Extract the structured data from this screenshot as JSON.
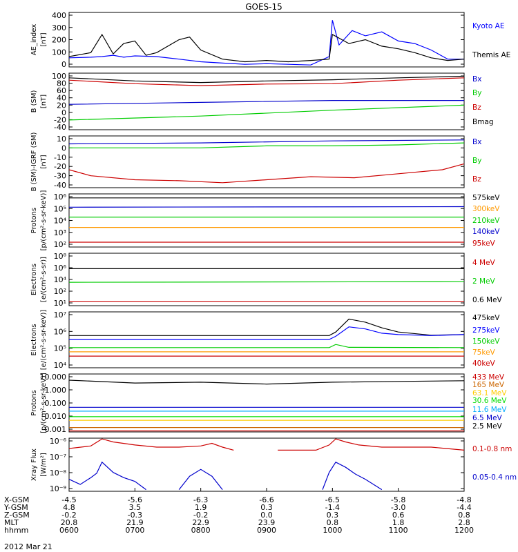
{
  "title": "GOES-15",
  "date_label": "2012 Mar 21",
  "chart_data": [
    {
      "type": "line",
      "ylabel": [
        "AE_index",
        "[nT]"
      ],
      "yticks": [
        "400",
        "300",
        "200",
        "100",
        "0"
      ],
      "ylim": [
        0,
        420
      ],
      "series": [
        {
          "name": "Kyoto AE",
          "color": "#0000ff",
          "x": [
            6.0,
            6.33,
            6.5,
            6.67,
            6.83,
            7.0,
            7.33,
            7.67,
            8.0,
            8.33,
            8.67,
            9.0,
            9.33,
            9.67,
            9.95,
            10.0,
            10.1,
            10.3,
            10.5,
            10.75,
            11.0,
            11.25,
            11.5,
            11.75,
            12.0
          ],
          "y": [
            70,
            75,
            80,
            90,
            75,
            85,
            80,
            60,
            40,
            30,
            20,
            25,
            20,
            15,
            80,
            360,
            170,
            280,
            240,
            270,
            200,
            180,
            130,
            60,
            60
          ]
        },
        {
          "name": "Themis AE",
          "color": "#000000",
          "x": [
            6.0,
            6.33,
            6.5,
            6.67,
            6.83,
            7.0,
            7.17,
            7.33,
            7.67,
            7.83,
            8.0,
            8.33,
            8.67,
            9.0,
            9.33,
            9.67,
            9.95,
            10.0,
            10.25,
            10.5,
            10.75,
            11.0,
            11.25,
            11.5,
            11.75,
            12.0
          ],
          "y": [
            80,
            110,
            250,
            100,
            180,
            200,
            90,
            110,
            210,
            230,
            130,
            60,
            40,
            50,
            40,
            50,
            60,
            250,
            180,
            210,
            160,
            140,
            110,
            70,
            50,
            60
          ]
        }
      ]
    },
    {
      "type": "line",
      "ylabel": [
        "B (SM)",
        "[nT]"
      ],
      "yticks": [
        "100",
        "80",
        "60",
        "40",
        "20",
        "0",
        "-20",
        "-40"
      ],
      "ylim": [
        -45,
        100
      ],
      "series": [
        {
          "name": "Bx",
          "color": "#0000cc",
          "x": [
            6,
            8,
            10,
            12
          ],
          "y": [
            20,
            25,
            30,
            30
          ]
        },
        {
          "name": "By",
          "color": "#00cc00",
          "x": [
            6,
            8,
            10,
            12
          ],
          "y": [
            -20,
            -10,
            5,
            18
          ]
        },
        {
          "name": "Bz",
          "color": "#cc0000",
          "x": [
            6,
            7,
            8,
            9,
            10,
            11,
            12
          ],
          "y": [
            82,
            73,
            68,
            72,
            73,
            82,
            88
          ]
        },
        {
          "name": "Bmag",
          "color": "#000000",
          "x": [
            6,
            7,
            8,
            9,
            10,
            11,
            12
          ],
          "y": [
            88,
            80,
            76,
            80,
            83,
            88,
            92
          ]
        }
      ]
    },
    {
      "type": "line",
      "ylabel": [
        "B (SM)-IGRF (SM)",
        "[nT]"
      ],
      "yticks": [
        "10",
        "0",
        "-10",
        "-20",
        "-30",
        "-40"
      ],
      "ylim": [
        -40,
        12
      ],
      "series": [
        {
          "name": "Bx",
          "color": "#0000cc",
          "x": [
            6,
            8,
            10,
            12
          ],
          "y": [
            4,
            5,
            7,
            8
          ]
        },
        {
          "name": "By",
          "color": "#00cc00",
          "x": [
            6,
            7,
            8,
            9,
            10,
            11,
            12
          ],
          "y": [
            0,
            0,
            0,
            2,
            2,
            3,
            5
          ]
        },
        {
          "name": "Bz",
          "color": "#cc0000",
          "x": [
            6,
            6.33,
            7,
            7.67,
            8.33,
            9,
            9.67,
            10.33,
            11,
            11.67,
            12
          ],
          "y": [
            -22,
            -28,
            -32,
            -33,
            -35,
            -32,
            -29,
            -30,
            -26,
            -22,
            -16
          ]
        }
      ]
    },
    {
      "type": "line",
      "log_scale": true,
      "ylabel": [
        "Protons",
        "[p/(cm²-s-sr-keV)]"
      ],
      "yticks": [
        "10⁶",
        "10⁵",
        "10⁴",
        "10³",
        "10²"
      ],
      "ylim": [
        100,
        1000000
      ],
      "series": [
        {
          "name": "575keV",
          "color": "#000000",
          "x": [
            6,
            12
          ],
          "y": [
            500000,
            500000
          ]
        },
        {
          "name": "300keV",
          "color": "#ff9900",
          "x": [
            6,
            12
          ],
          "y": [
            3000,
            3000
          ]
        },
        {
          "name": "210keV",
          "color": "#00cc00",
          "x": [
            6,
            12
          ],
          "y": [
            18000,
            18000
          ]
        },
        {
          "name": "140keV",
          "color": "#0000cc",
          "x": [
            6,
            12
          ],
          "y": [
            100000,
            110000
          ]
        },
        {
          "name": "95keV",
          "color": "#cc0000",
          "x": [
            6,
            12
          ],
          "y": [
            230,
            230
          ]
        }
      ]
    },
    {
      "type": "line",
      "log_scale": true,
      "ylabel": [
        "Electrons",
        "[e/(cm²-s-sr)]"
      ],
      "yticks": [
        "10⁸",
        "10⁶",
        "10⁴",
        "10²",
        "10¹"
      ],
      "ylim": [
        5,
        100000000
      ],
      "series": [
        {
          "name": "4 MeV",
          "color": "#cc0000",
          "x": [
            6,
            12
          ],
          "y": [
            20,
            20
          ]
        },
        {
          "name": "2 MeV",
          "color": "#00cc00",
          "x": [
            6,
            12
          ],
          "y": [
            9000,
            11000
          ]
        },
        {
          "name": "0.6 MeV",
          "color": "#000000",
          "x": [
            6,
            12
          ],
          "y": [
            700000,
            700000
          ]
        }
      ]
    },
    {
      "type": "line",
      "log_scale": true,
      "ylabel": [
        "Electrons",
        "[e/(cm²-s-sr-keV)]"
      ],
      "yticks": [
        "10⁷",
        "10⁶",
        "10⁵",
        "10⁴"
      ],
      "ylim": [
        9000,
        80000000
      ],
      "series": [
        {
          "name": "475keV",
          "color": "#000000",
          "x": [
            6,
            9.95,
            10.05,
            10.25,
            10.5,
            10.75,
            11,
            11.5,
            12
          ],
          "y": [
            1700000,
            1700000,
            3000000,
            25000000,
            15000000,
            6000000,
            3000000,
            1800000,
            2000000
          ]
        },
        {
          "name": "275keV",
          "color": "#0000ff",
          "x": [
            6,
            9.95,
            10.05,
            10.25,
            10.5,
            10.75,
            11,
            11.5,
            12
          ],
          "y": [
            900000,
            900000,
            1500000,
            7000000,
            5000000,
            2500000,
            2000000,
            1700000,
            2000000
          ]
        },
        {
          "name": "150keV",
          "color": "#00cc00",
          "x": [
            6,
            9.95,
            10.05,
            10.25,
            12
          ],
          "y": [
            240000,
            240000,
            400000,
            250000,
            240000
          ]
        },
        {
          "name": "75keV",
          "color": "#ff9900",
          "x": [
            6,
            12
          ],
          "y": [
            120000,
            120000
          ]
        },
        {
          "name": "40keV",
          "color": "#cc0000",
          "x": [
            6,
            12
          ],
          "y": [
            60000,
            60000
          ]
        }
      ]
    },
    {
      "type": "line",
      "log_scale": true,
      "ylabel": [
        "Protons",
        "[p/(cm²-s-sr-keV)]"
      ],
      "yticks": [
        "10.000",
        "1.000",
        "0.100",
        "0.010",
        "0.001"
      ],
      "ylim": [
        0.001,
        30
      ],
      "series": [
        {
          "name": "433 MeV",
          "color": "#cc0000",
          "x": [
            6,
            12
          ],
          "y": [
            0.0012,
            0.0012
          ]
        },
        {
          "name": "165 MeV",
          "color": "#cc6600",
          "x": [
            6,
            12
          ],
          "y": [
            0.0022,
            0.0022
          ]
        },
        {
          "name": "63.1 MeV",
          "color": "#ffcc00",
          "x": [
            6,
            12
          ],
          "y": [
            0.008,
            0.008
          ]
        },
        {
          "name": "30.6 MeV",
          "color": "#00dd00",
          "x": [
            6,
            12
          ],
          "y": [
            0.015,
            0.015
          ]
        },
        {
          "name": "11.6 MeV",
          "color": "#00aaff",
          "x": [
            6,
            12
          ],
          "y": [
            0.04,
            0.04
          ]
        },
        {
          "name": "6.5 MeV",
          "color": "#0000cc",
          "x": [
            6,
            12
          ],
          "y": [
            0.08,
            0.08
          ]
        },
        {
          "name": "2.5 MeV",
          "color": "#000000",
          "x": [
            6,
            7,
            8,
            9,
            10,
            11,
            12
          ],
          "y": [
            10,
            6,
            7,
            5,
            7,
            8,
            9
          ]
        }
      ]
    },
    {
      "type": "line",
      "log_scale": true,
      "ylabel": [
        "Xray Flux",
        "[W/m²]"
      ],
      "yticks": [
        "10⁻⁶",
        "10⁻⁷",
        "10⁻⁸",
        "10⁻⁹"
      ],
      "ylim": [
        8e-10,
        1e-06
      ],
      "series": [
        {
          "name": "0.1-0.8 nm",
          "color": "#cc0000",
          "segments": [
            {
              "x": [
                6.0,
                6.33,
                6.5,
                6.67,
                7.0,
                7.33,
                7.67,
                8.0,
                8.17,
                8.33,
                8.5
              ],
              "y": [
                2.5e-07,
                3.5e-07,
                9e-07,
                6e-07,
                4e-07,
                3e-07,
                3e-07,
                3.5e-07,
                5e-07,
                3e-07,
                2e-07
              ]
            },
            {
              "x": [
                9.17,
                9.5,
                9.75,
                9.95,
                10.05,
                10.2,
                10.4,
                10.75,
                11,
                11.5,
                12
              ],
              "y": [
                2e-07,
                2e-07,
                2e-07,
                4e-07,
                9e-07,
                6e-07,
                4e-07,
                3e-07,
                3e-07,
                3e-07,
                2e-07
              ]
            }
          ]
        },
        {
          "name": "0.05-0.4 nm",
          "color": "#0000cc",
          "segments": [
            {
              "x": [
                6.0,
                6.17,
                6.33,
                6.42,
                6.5,
                6.67,
                6.83,
                7.0,
                7.17
              ],
              "y": [
                4e-09,
                2e-09,
                5e-09,
                9e-09,
                4e-08,
                1e-08,
                5e-09,
                3e-09,
                1e-09
              ]
            },
            {
              "x": [
                7.67,
                7.83,
                8.0,
                8.17,
                8.33
              ],
              "y": [
                1e-09,
                6e-09,
                1.5e-08,
                6e-09,
                1e-09
              ]
            },
            {
              "x": [
                9.85,
                9.95,
                10.05,
                10.2,
                10.35,
                10.5,
                10.75
              ],
              "y": [
                1e-09,
                1e-08,
                4e-08,
                2e-08,
                8e-09,
                4e-09,
                1e-09
              ]
            }
          ]
        }
      ]
    }
  ],
  "x_axis": {
    "range": [
      6,
      12
    ],
    "ticks": [
      6,
      7,
      8,
      9,
      10,
      11,
      12
    ],
    "rows": [
      {
        "label": "X-GSM",
        "values": [
          "-4.5",
          "-5.6",
          "-6.3",
          "-6.6",
          "-6.5",
          "-5.8",
          "-4.8"
        ]
      },
      {
        "label": "Y-GSM",
        "values": [
          "4.8",
          "3.5",
          "1.9",
          "0.3",
          "-1.4",
          "-3.0",
          "-4.4"
        ]
      },
      {
        "label": "Z-GSM",
        "values": [
          "-0.2",
          "-0.3",
          "-0.2",
          "0.0",
          "0.3",
          "0.6",
          "0.8"
        ]
      },
      {
        "label": "MLT",
        "values": [
          "20.8",
          "21.9",
          "22.9",
          "23.9",
          "0.8",
          "1.8",
          "2.8"
        ]
      },
      {
        "label": "hhmm",
        "values": [
          "0600",
          "0700",
          "0800",
          "0900",
          "1000",
          "1100",
          "1200"
        ]
      }
    ]
  }
}
